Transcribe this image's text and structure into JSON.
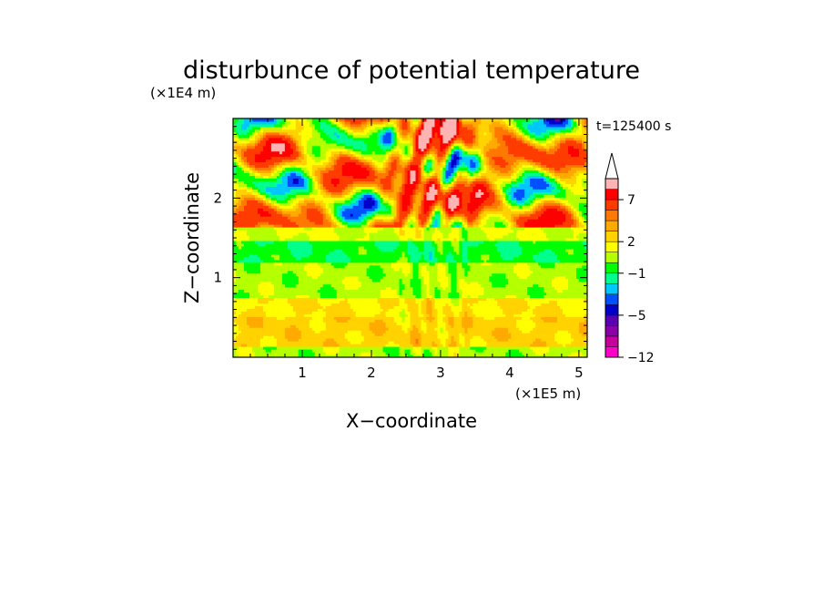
{
  "chart_data": {
    "type": "heatmap",
    "title": "disturbunce of potential temperature",
    "time_label": "t=125400 s",
    "xlabel": "X−coordinate",
    "ylabel": "Z−coordinate",
    "x_unit": "(×1E5 m)",
    "y_unit": "(×1E4 m)",
    "xlim": [
      0,
      5.12
    ],
    "ylim": [
      0,
      3.0
    ],
    "x_ticks": [
      "1",
      "2",
      "3",
      "4",
      "5"
    ],
    "y_ticks": [
      "1",
      "2"
    ],
    "colorbar": {
      "levels": [
        -12,
        -10,
        -8,
        -6,
        -5,
        -4,
        -3,
        -2,
        -1,
        0,
        1,
        2,
        3,
        4,
        5,
        7,
        9,
        11
      ],
      "colors": [
        "#ff00c8",
        "#c8009b",
        "#8c00aa",
        "#5a00b4",
        "#0000c8",
        "#0050ff",
        "#00c8ff",
        "#00ff8c",
        "#00ff00",
        "#b4ff00",
        "#ffff00",
        "#ffd200",
        "#ffaa00",
        "#ff7800",
        "#ff3c00",
        "#ff0000",
        "#ffb4b4"
      ],
      "tick_labels": [
        "−12",
        "−5",
        "−1",
        "2",
        "7"
      ],
      "extend_top": true
    },
    "bands": [
      {
        "z_from": 0.0,
        "z_to": 0.15,
        "value": 0.5,
        "desc": "green/yellow"
      },
      {
        "z_from": 0.15,
        "z_to": 0.5,
        "value": 2.5,
        "desc": "yellow/orange"
      },
      {
        "z_from": 0.5,
        "z_to": 0.75,
        "value": 2.0,
        "desc": "yellow"
      },
      {
        "z_from": 0.75,
        "z_to": 1.2,
        "value": 0.5,
        "desc": "green"
      },
      {
        "z_from": 1.2,
        "z_to": 1.45,
        "value": -0.8,
        "desc": "cyan"
      },
      {
        "z_from": 1.45,
        "z_to": 1.65,
        "value": 1.0,
        "desc": "yellow/green"
      },
      {
        "z_from": 1.65,
        "z_to": 3.0,
        "value": 3.0,
        "desc": "wavy orange/blue"
      }
    ]
  }
}
